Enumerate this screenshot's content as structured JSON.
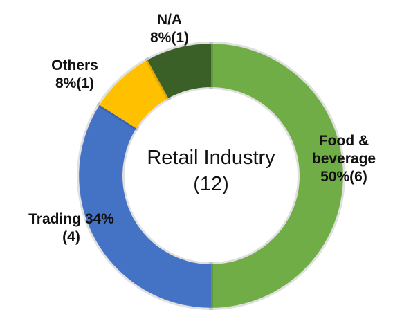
{
  "chart_data": {
    "type": "donut",
    "title": "Retail Industry",
    "center_label": "(12)",
    "categories": [
      "Food & beverage",
      "Trading",
      "Others",
      "N/A"
    ],
    "values": [
      50,
      34,
      8,
      8
    ],
    "value_labels": [
      "50%",
      "34%",
      "8%",
      "8%"
    ],
    "count_labels": [
      "(6)",
      "(4)",
      "(1)",
      "(1)"
    ],
    "colors": [
      "#70ad47",
      "#4472c4",
      "#ffc000",
      "#3b6027"
    ]
  }
}
